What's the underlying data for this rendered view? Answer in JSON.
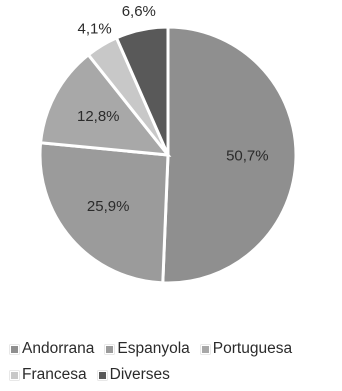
{
  "chart_data": {
    "type": "pie",
    "title": "",
    "categories": [
      "Andorrana",
      "Espanyola",
      "Portuguesa",
      "Francesa",
      "Diverses"
    ],
    "values": [
      50.7,
      25.9,
      12.8,
      4.1,
      6.6
    ],
    "value_labels": [
      "50,7%",
      "25,9%",
      "12,8%",
      "4,1%",
      "6,6%"
    ],
    "colors": [
      "#8f8f8f",
      "#9b9b9b",
      "#a8a8a8",
      "#c8c8c8",
      "#595959"
    ],
    "legend_position": "bottom",
    "label_positions": [
      "inside",
      "inside",
      "inside",
      "outside",
      "outside"
    ]
  }
}
